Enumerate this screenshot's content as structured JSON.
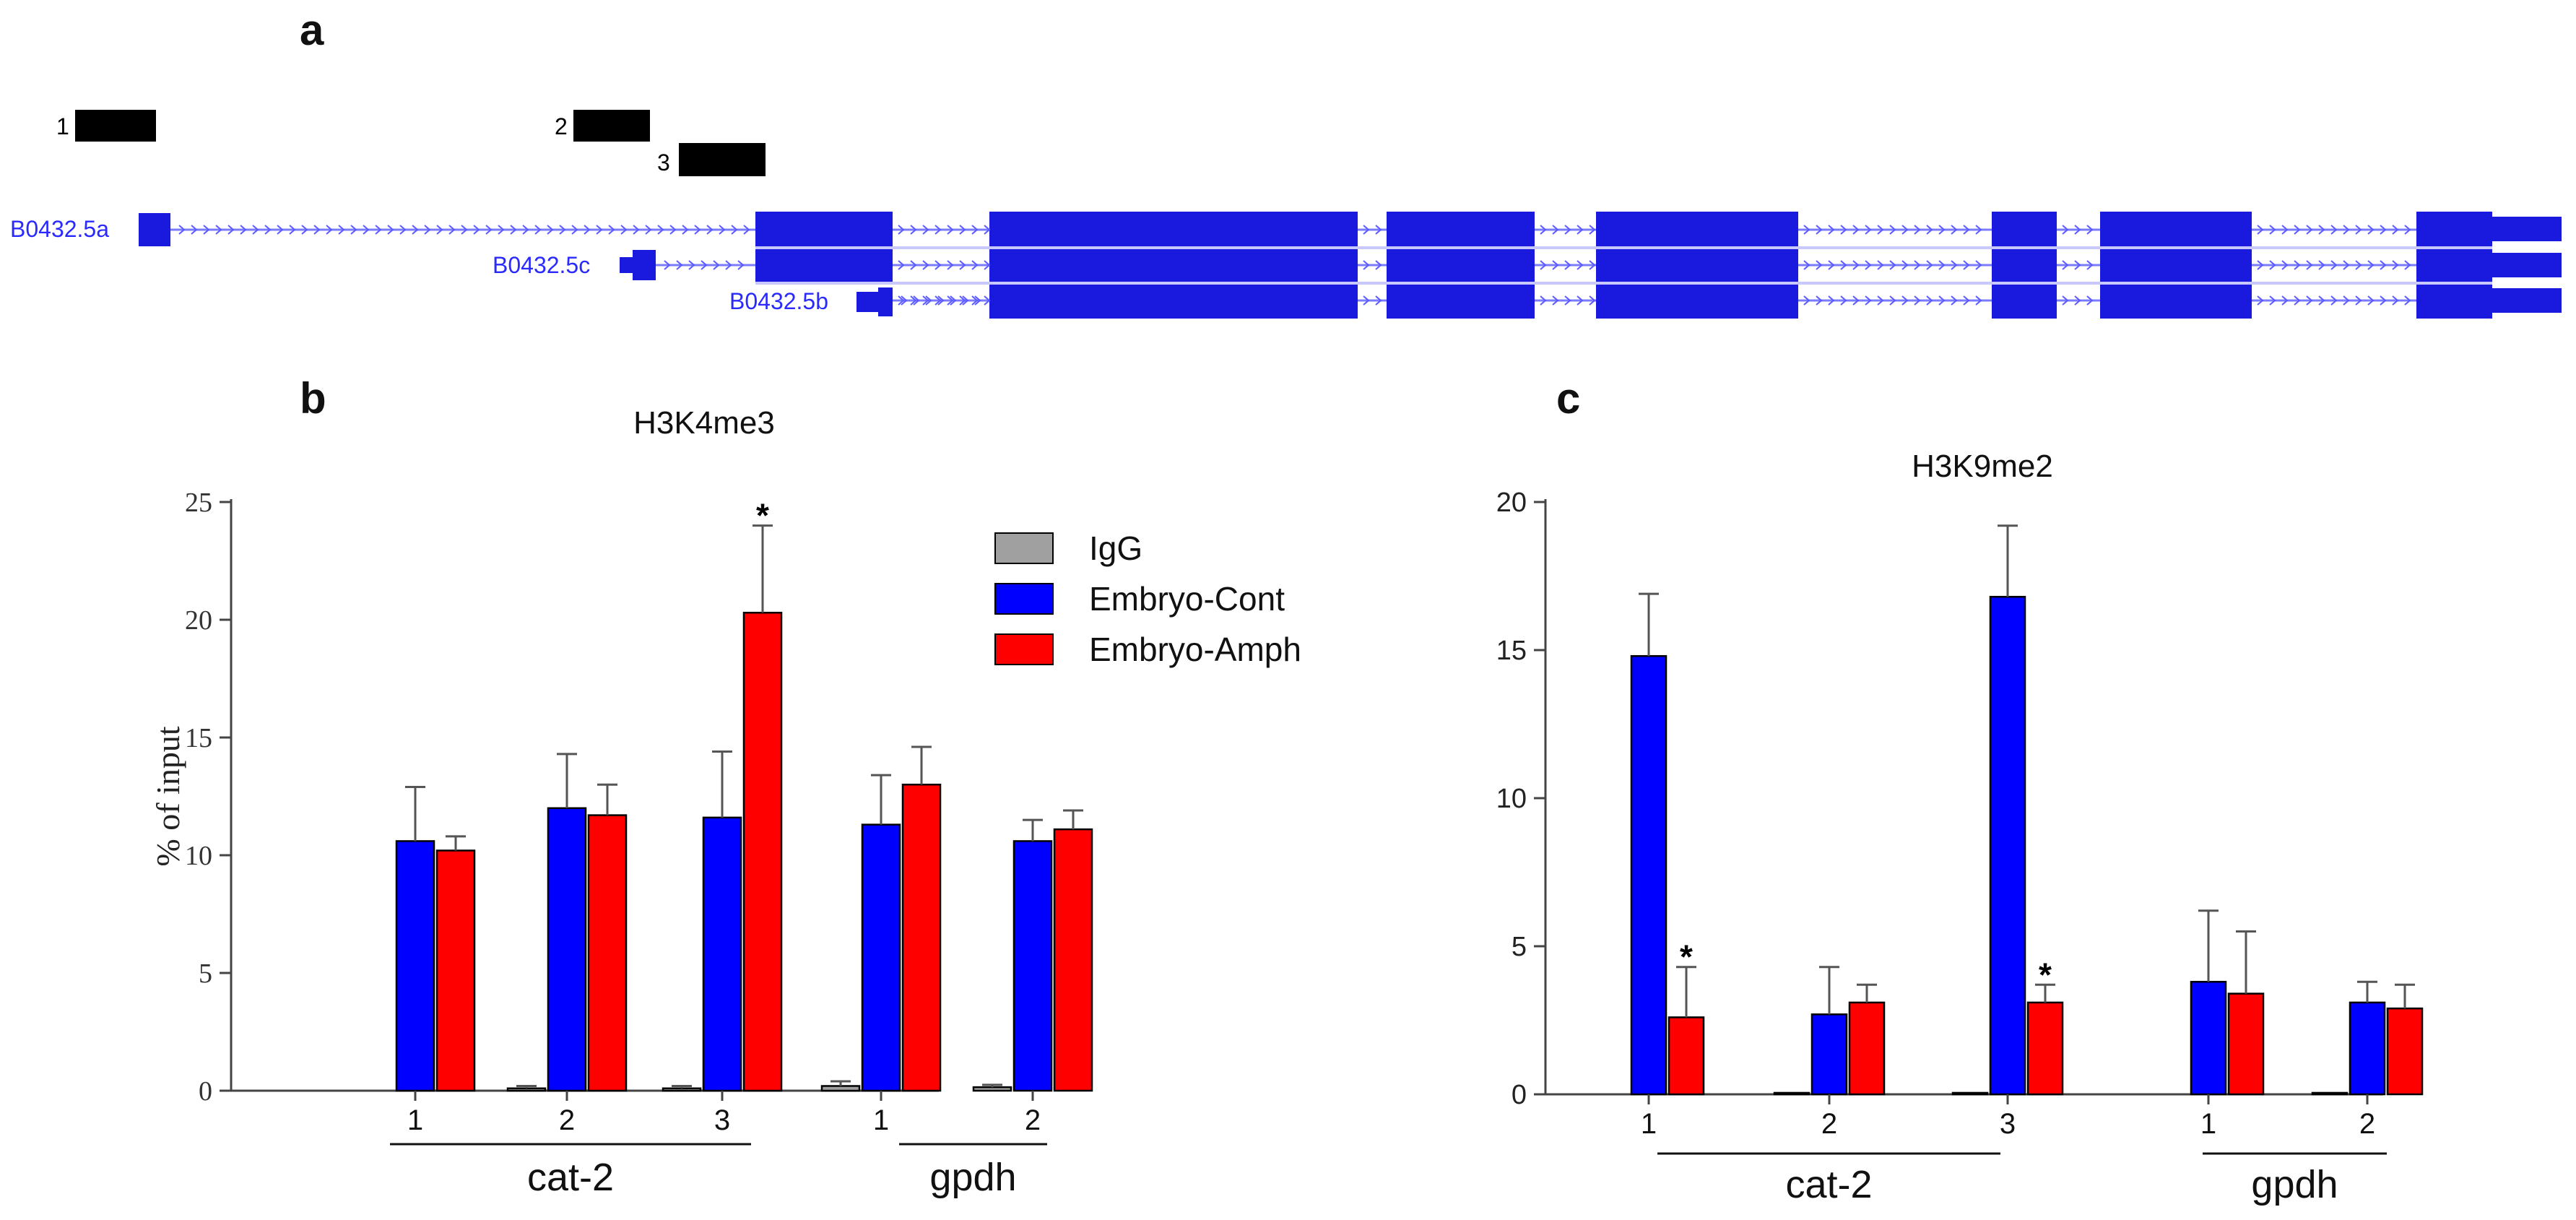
{
  "panels": {
    "a": "a",
    "b": "b",
    "c": "c"
  },
  "gene_model": {
    "amplicons": [
      "1",
      "2",
      "3"
    ],
    "transcripts": [
      "B0432.5a",
      "B0432.5c",
      "B0432.5b"
    ],
    "colors": {
      "exon": "#1a1adf",
      "amplicon": "#000000",
      "intron": "#7b7bff"
    }
  },
  "legend": {
    "igg": "IgG",
    "cont": "Embryo-Cont",
    "amph": "Embryo-Amph"
  },
  "colors": {
    "igg": "#a0a0a0",
    "cont": "#0000ff",
    "amph": "#ff0000"
  },
  "chart_data": [
    {
      "type": "bar",
      "title": "H3K4me3",
      "ylabel": "% of input",
      "xlabel": "",
      "ylim": [
        0,
        25
      ],
      "yticks": [
        "0",
        "5",
        "10",
        "15",
        "20",
        "25"
      ],
      "categories": [
        "1",
        "2",
        "3",
        "1",
        "2"
      ],
      "groups": [
        {
          "label": "cat-2",
          "categories": [
            "1",
            "2",
            "3"
          ]
        },
        {
          "label": "gpdh",
          "categories": [
            "1",
            "2"
          ]
        }
      ],
      "series": [
        {
          "name": "IgG",
          "values": [
            0.0,
            0.1,
            0.1,
            0.2,
            0.15
          ],
          "errors": [
            0.0,
            0.1,
            0.1,
            0.2,
            0.1
          ]
        },
        {
          "name": "Embryo-Cont",
          "values": [
            10.6,
            12.0,
            11.6,
            11.3,
            10.6
          ],
          "errors": [
            2.3,
            2.3,
            2.8,
            2.1,
            0.9
          ]
        },
        {
          "name": "Embryo-Amph",
          "values": [
            10.2,
            11.7,
            20.3,
            13.0,
            11.1
          ],
          "errors": [
            0.6,
            1.3,
            3.7,
            1.6,
            0.8
          ]
        }
      ],
      "significance": [
        {
          "category_index": 2,
          "series": "Embryo-Amph",
          "mark": "*"
        }
      ]
    },
    {
      "type": "bar",
      "title": "H3K9me2",
      "ylabel": "",
      "xlabel": "",
      "ylim": [
        0,
        20
      ],
      "yticks": [
        "0",
        "5",
        "10",
        "15",
        "20"
      ],
      "categories": [
        "1",
        "2",
        "3",
        "1",
        "2"
      ],
      "groups": [
        {
          "label": "cat-2",
          "categories": [
            "1",
            "2",
            "3"
          ]
        },
        {
          "label": "gpdh",
          "categories": [
            "1",
            "2"
          ]
        }
      ],
      "series": [
        {
          "name": "IgG",
          "values": [
            0.0,
            0.05,
            0.05,
            0.0,
            0.05
          ],
          "errors": [
            0.0,
            0.0,
            0.0,
            0.0,
            0.0
          ]
        },
        {
          "name": "Embryo-Cont",
          "values": [
            14.8,
            2.7,
            16.8,
            3.8,
            3.1
          ],
          "errors": [
            2.1,
            1.6,
            2.4,
            2.4,
            0.7
          ]
        },
        {
          "name": "Embryo-Amph",
          "values": [
            2.6,
            3.1,
            3.1,
            3.4,
            2.9
          ],
          "errors": [
            1.7,
            0.6,
            0.6,
            2.1,
            0.8
          ]
        }
      ],
      "significance": [
        {
          "category_index": 0,
          "series": "Embryo-Amph",
          "mark": "*"
        },
        {
          "category_index": 2,
          "series": "Embryo-Amph",
          "mark": "*"
        }
      ]
    }
  ]
}
